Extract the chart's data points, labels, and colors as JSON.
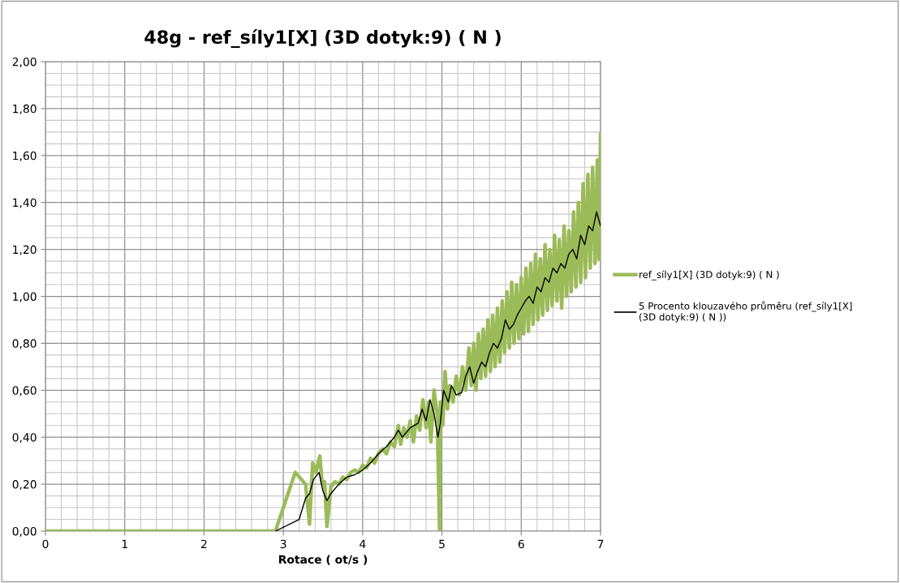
{
  "chart_data": {
    "type": "line",
    "title": "48g - ref_síly1[X] (3D dotyk:9) ( N )",
    "xlabel": "Rotace ( ot/s )",
    "xlim": [
      0,
      7
    ],
    "xticks": [
      0,
      1,
      2,
      3,
      4,
      5,
      6,
      7
    ],
    "ylim": [
      0,
      2
    ],
    "yticks": [
      {
        "value": 0,
        "label": "0,00"
      },
      {
        "value": 0.2,
        "label": "0,20"
      },
      {
        "value": 0.4,
        "label": "0,40"
      },
      {
        "value": 0.6,
        "label": "0,60"
      },
      {
        "value": 0.8,
        "label": "0,80"
      },
      {
        "value": 1.0,
        "label": "1,00"
      },
      {
        "value": 1.2,
        "label": "1,20"
      },
      {
        "value": 1.4,
        "label": "1,40"
      },
      {
        "value": 1.6,
        "label": "1,60"
      },
      {
        "value": 1.8,
        "label": "1,80"
      },
      {
        "value": 2.0,
        "label": "2,00"
      }
    ],
    "grid": true,
    "legend": "right",
    "marker": "none",
    "line_style": "solid",
    "series": [
      {
        "name": "ref_síly1[X] (3D dotyk:9) ( N )",
        "color": "#9bbb59",
        "x": [
          0,
          2.9,
          3.15,
          3.28,
          3.33,
          3.37,
          3.41,
          3.46,
          3.49,
          3.52,
          3.55,
          3.6,
          3.65,
          3.7,
          3.75,
          3.8,
          3.85,
          3.9,
          3.95,
          4.0,
          4.05,
          4.1,
          4.15,
          4.2,
          4.25,
          4.3,
          4.35,
          4.4,
          4.45,
          4.48,
          4.52,
          4.56,
          4.6,
          4.64,
          4.68,
          4.72,
          4.76,
          4.8,
          4.83,
          4.86,
          4.9,
          4.94,
          4.97,
          4.98,
          5.01,
          5.04,
          5.07,
          5.1,
          5.14,
          5.18,
          5.22,
          5.26,
          5.3,
          5.34,
          5.37,
          5.4,
          5.43,
          5.46,
          5.49,
          5.52,
          5.55,
          5.58,
          5.61,
          5.64,
          5.67,
          5.7,
          5.73,
          5.76,
          5.79,
          5.82,
          5.85,
          5.88,
          5.91,
          5.94,
          5.97,
          6.0,
          6.03,
          6.06,
          6.09,
          6.12,
          6.15,
          6.18,
          6.21,
          6.24,
          6.27,
          6.3,
          6.33,
          6.36,
          6.39,
          6.42,
          6.45,
          6.48,
          6.51,
          6.54,
          6.57,
          6.6,
          6.63,
          6.66,
          6.69,
          6.72,
          6.75,
          6.78,
          6.81,
          6.84,
          6.87,
          6.9,
          6.93,
          6.96,
          6.98,
          7.0
        ],
        "values": [
          0,
          0,
          0.25,
          0.2,
          0.03,
          0.29,
          0.25,
          0.32,
          0.2,
          0.21,
          0.02,
          0.19,
          0.21,
          0.2,
          0.23,
          0.22,
          0.25,
          0.26,
          0.25,
          0.28,
          0.27,
          0.31,
          0.29,
          0.33,
          0.35,
          0.33,
          0.38,
          0.36,
          0.45,
          0.37,
          0.44,
          0.4,
          0.47,
          0.38,
          0.49,
          0.43,
          0.56,
          0.44,
          0.55,
          0.38,
          0.6,
          0.5,
          0.0,
          0.55,
          0.45,
          0.68,
          0.52,
          0.62,
          0.55,
          0.66,
          0.58,
          0.7,
          0.6,
          0.78,
          0.62,
          0.8,
          0.6,
          0.84,
          0.65,
          0.86,
          0.66,
          0.9,
          0.68,
          0.92,
          0.7,
          0.95,
          0.72,
          0.98,
          0.76,
          1.02,
          0.78,
          1.06,
          0.8,
          1.05,
          0.82,
          1.08,
          0.84,
          1.12,
          0.85,
          1.14,
          0.88,
          1.18,
          0.9,
          1.16,
          0.92,
          1.22,
          0.94,
          1.2,
          0.96,
          1.26,
          0.98,
          1.24,
          0.95,
          1.3,
          1.0,
          1.28,
          1.02,
          1.36,
          1.04,
          1.4,
          1.06,
          1.48,
          1.08,
          1.52,
          1.12,
          1.55,
          1.14,
          1.58,
          1.16,
          1.69
        ]
      },
      {
        "name": "5 Procento klouzavého průměru (ref_síly1[X] (3D dotyk:9) ( N ))",
        "color": "#000000",
        "x": [
          2.9,
          3.2,
          3.28,
          3.33,
          3.38,
          3.45,
          3.5,
          3.55,
          3.6,
          3.7,
          3.8,
          3.9,
          4.0,
          4.1,
          4.2,
          4.3,
          4.4,
          4.45,
          4.5,
          4.6,
          4.7,
          4.75,
          4.8,
          4.85,
          4.9,
          4.95,
          4.98,
          5.02,
          5.08,
          5.12,
          5.18,
          5.25,
          5.3,
          5.35,
          5.4,
          5.45,
          5.5,
          5.55,
          5.6,
          5.65,
          5.7,
          5.75,
          5.8,
          5.85,
          5.9,
          5.95,
          6.0,
          6.05,
          6.1,
          6.15,
          6.2,
          6.25,
          6.3,
          6.35,
          6.4,
          6.45,
          6.5,
          6.55,
          6.6,
          6.65,
          6.7,
          6.75,
          6.8,
          6.85,
          6.9,
          6.95,
          7.0
        ],
        "values": [
          0,
          0.05,
          0.14,
          0.16,
          0.22,
          0.25,
          0.17,
          0.13,
          0.16,
          0.2,
          0.23,
          0.24,
          0.26,
          0.29,
          0.33,
          0.36,
          0.4,
          0.43,
          0.4,
          0.44,
          0.46,
          0.52,
          0.47,
          0.56,
          0.5,
          0.4,
          0.46,
          0.6,
          0.55,
          0.62,
          0.58,
          0.59,
          0.66,
          0.7,
          0.63,
          0.68,
          0.72,
          0.7,
          0.76,
          0.8,
          0.78,
          0.82,
          0.9,
          0.86,
          0.88,
          0.92,
          0.95,
          0.98,
          1.0,
          0.97,
          1.04,
          1.02,
          1.08,
          1.06,
          1.12,
          1.1,
          1.14,
          1.12,
          1.18,
          1.2,
          1.16,
          1.26,
          1.22,
          1.3,
          1.28,
          1.36,
          1.3
        ]
      }
    ]
  }
}
